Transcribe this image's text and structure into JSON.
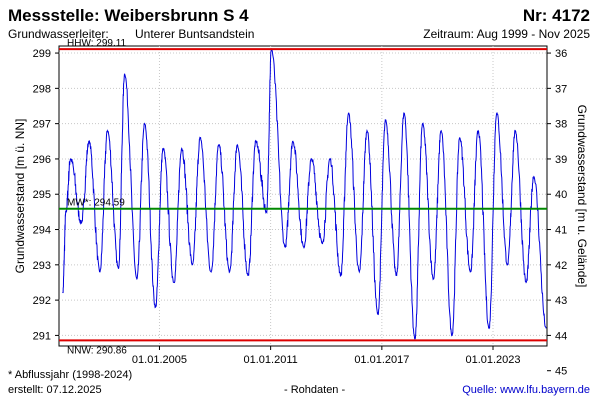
{
  "header": {
    "title": "Messstelle: Weibersbrunn S 4",
    "number": "Nr: 4172",
    "aquifer_label": "Grundwasserleiter:",
    "aquifer_value": "Unterer Buntsandstein",
    "period": "Zeitraum: Aug 1999 - Nov 2025"
  },
  "footer": {
    "note": "* Abflussjahr (1998-2024)",
    "created": "erstellt:  07.12.2025",
    "raw": "- Rohdaten -",
    "source": "Quelle: www.lfu.bayern.de"
  },
  "colors": {
    "line": "#0000dd",
    "hhw": "#dd0000",
    "nnw": "#dd0000",
    "mw": "#008800",
    "grid": "#c8c8c8"
  },
  "chart_data": {
    "type": "line",
    "title": "Messstelle: Weibersbrunn S 4",
    "ylabel_left": "Grundwasserstand [m ü. NN]",
    "ylabel_right": "Grundwasserstand [m u. Gelände]",
    "ylim": [
      290.7,
      299.2
    ],
    "yticks_left": [
      291,
      292,
      293,
      294,
      295,
      296,
      297,
      298,
      299
    ],
    "right_axis": {
      "ticks": [
        36,
        37,
        38,
        39,
        40,
        41,
        42,
        43,
        44,
        45
      ],
      "ground_level_m": 335
    },
    "xlim": [
      "1999-08-01",
      "2025-11-30"
    ],
    "xticks": [
      "01.01.2005",
      "01.01.2011",
      "01.01.2017",
      "01.01.2023"
    ],
    "xtick_dates": [
      "2005-01-01",
      "2011-01-01",
      "2017-01-01",
      "2023-01-01"
    ],
    "grid": true,
    "reference_lines": [
      {
        "label": "HHW: 299.11",
        "value": 299.11
      },
      {
        "label": "MW*: 294.59",
        "value": 294.59
      },
      {
        "label": "NNW: 290.86",
        "value": 290.86
      }
    ],
    "annual_cycle": [
      {
        "year": 1999,
        "high": 294.5,
        "high_month": 12,
        "low": 292.2,
        "low_month": 10
      },
      {
        "year": 2000,
        "high": 296.0,
        "high_month": 3,
        "low": 294.2,
        "low_month": 10
      },
      {
        "year": 2001,
        "high": 296.5,
        "high_month": 3,
        "low": 292.8,
        "low_month": 10
      },
      {
        "year": 2002,
        "high": 296.8,
        "high_month": 3,
        "low": 292.9,
        "low_month": 10
      },
      {
        "year": 2003,
        "high": 298.4,
        "high_month": 2,
        "low": 292.6,
        "low_month": 10
      },
      {
        "year": 2004,
        "high": 297.0,
        "high_month": 3,
        "low": 291.8,
        "low_month": 10
      },
      {
        "year": 2005,
        "high": 296.3,
        "high_month": 3,
        "low": 292.5,
        "low_month": 10
      },
      {
        "year": 2006,
        "high": 296.3,
        "high_month": 3,
        "low": 293.0,
        "low_month": 10
      },
      {
        "year": 2007,
        "high": 296.6,
        "high_month": 3,
        "low": 292.8,
        "low_month": 10
      },
      {
        "year": 2008,
        "high": 296.4,
        "high_month": 3,
        "low": 292.8,
        "low_month": 10
      },
      {
        "year": 2009,
        "high": 296.4,
        "high_month": 3,
        "low": 292.7,
        "low_month": 10
      },
      {
        "year": 2010,
        "high": 296.5,
        "high_month": 3,
        "low": 294.5,
        "low_month": 10
      },
      {
        "year": 2011,
        "high": 299.11,
        "high_month": 1,
        "low": 293.5,
        "low_month": 10
      },
      {
        "year": 2012,
        "high": 296.5,
        "high_month": 3,
        "low": 293.5,
        "low_month": 10
      },
      {
        "year": 2013,
        "high": 296.0,
        "high_month": 3,
        "low": 293.6,
        "low_month": 10
      },
      {
        "year": 2014,
        "high": 296.0,
        "high_month": 3,
        "low": 292.7,
        "low_month": 10
      },
      {
        "year": 2015,
        "high": 297.3,
        "high_month": 3,
        "low": 292.8,
        "low_month": 10
      },
      {
        "year": 2016,
        "high": 296.8,
        "high_month": 3,
        "low": 291.6,
        "low_month": 10
      },
      {
        "year": 2017,
        "high": 297.1,
        "high_month": 3,
        "low": 292.7,
        "low_month": 10
      },
      {
        "year": 2018,
        "high": 297.3,
        "high_month": 3,
        "low": 290.9,
        "low_month": 10
      },
      {
        "year": 2019,
        "high": 297.0,
        "high_month": 3,
        "low": 292.6,
        "low_month": 10
      },
      {
        "year": 2020,
        "high": 296.8,
        "high_month": 3,
        "low": 291.0,
        "low_month": 10
      },
      {
        "year": 2021,
        "high": 296.6,
        "high_month": 3,
        "low": 292.8,
        "low_month": 10
      },
      {
        "year": 2022,
        "high": 296.8,
        "high_month": 3,
        "low": 291.2,
        "low_month": 10
      },
      {
        "year": 2023,
        "high": 297.3,
        "high_month": 3,
        "low": 293.0,
        "low_month": 10
      },
      {
        "year": 2024,
        "high": 296.8,
        "high_month": 3,
        "low": 292.5,
        "low_month": 10
      },
      {
        "year": 2025,
        "high": 295.5,
        "high_month": 3,
        "low": 291.2,
        "low_month": 11
      }
    ]
  }
}
